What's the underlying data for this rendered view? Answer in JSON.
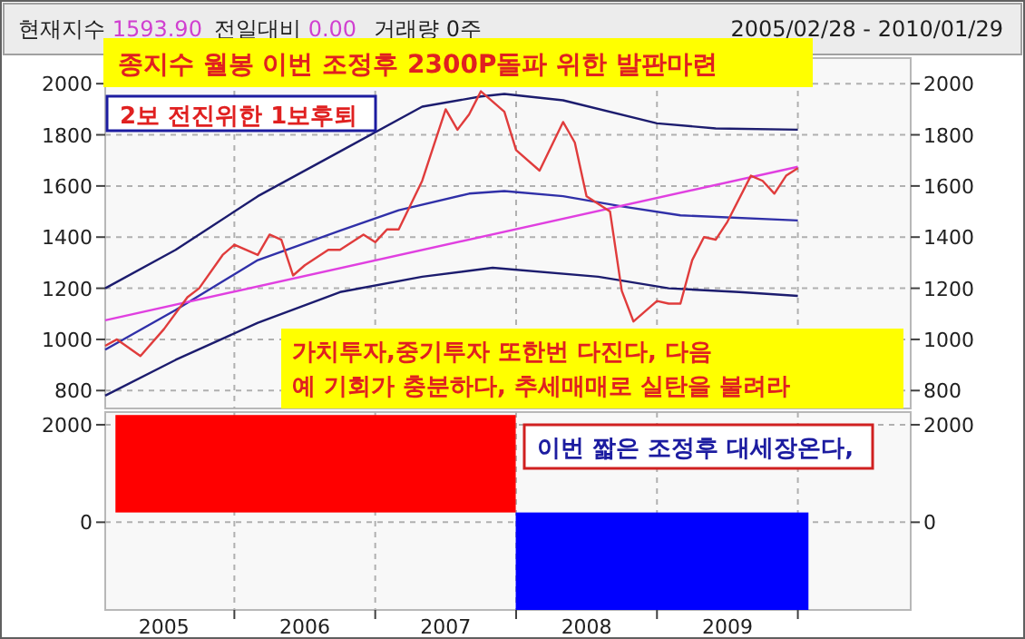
{
  "chart_data": [
    {
      "type": "line",
      "annotations": [
        "현재지수 1593.90",
        "전일대비 0.00",
        "거래량 0주",
        "2005/02/28 - 2010/01/29",
        "종지수 월봉 이번 조정후 2300P돌파 위한 발판마련",
        "2보 전진위한 1보후퇴",
        "가치투자,중기투자 또한번 다진다, 다음\n예 기회가 충분하다,  추세매매로 실탄을 불려라"
      ],
      "xlim": [
        "2005-02-01",
        "2010-10-20"
      ],
      "xticks": [
        {
          "value": "2006-01-01",
          "label": null
        },
        {
          "value": "2007-01-01",
          "label": null
        },
        {
          "value": "2008-01-01",
          "label": null
        },
        {
          "value": "2009-01-01",
          "label": null
        },
        {
          "value": "2010-01-01",
          "label": null
        }
      ],
      "ylim": [
        730,
        2100
      ],
      "yticks": [
        800,
        1000,
        1200,
        1400,
        1600,
        1800,
        2000
      ],
      "y2lim": [
        730,
        2100
      ],
      "y2ticks": [
        800,
        1000,
        1200,
        1400,
        1600,
        1800,
        2000
      ],
      "tick_labels": "y",
      "grid": true,
      "series": [
        {
          "color": "#1c1c6e",
          "x": [
            "2005-02",
            "2005-08",
            "2006-03",
            "2006-10",
            "2007-05",
            "2007-10",
            "2007-12",
            "2008-05",
            "2009-01",
            "2009-06",
            "2010-01"
          ],
          "values": [
            1200,
            1350,
            1560,
            1735,
            1910,
            1950,
            1960,
            1935,
            1845,
            1825,
            1820
          ]
        },
        {
          "color": "#3030a8",
          "x": [
            "2005-02",
            "2005-08",
            "2006-03",
            "2006-10",
            "2007-03",
            "2007-09",
            "2007-12",
            "2008-05",
            "2008-10",
            "2009-03",
            "2010-01"
          ],
          "values": [
            960,
            1115,
            1310,
            1425,
            1505,
            1570,
            1580,
            1560,
            1520,
            1485,
            1465
          ]
        },
        {
          "color": "#1c1c6e",
          "x": [
            "2005-02",
            "2005-08",
            "2006-03",
            "2006-10",
            "2007-05",
            "2007-11",
            "2008-08",
            "2009-02",
            "2009-08",
            "2010-01"
          ],
          "values": [
            780,
            920,
            1065,
            1185,
            1245,
            1280,
            1245,
            1200,
            1185,
            1170
          ]
        },
        {
          "color": "#e040e0",
          "x": [
            "2005-02",
            "2010-01"
          ],
          "values": [
            1075,
            1675
          ]
        },
        {
          "color": "#e03c3c",
          "x": [
            "2005-02",
            "2005-03",
            "2005-05",
            "2005-07",
            "2005-09",
            "2005-10",
            "2005-12",
            "2006-01",
            "2006-03",
            "2006-04",
            "2006-05",
            "2006-06",
            "2006-07",
            "2006-09",
            "2006-10",
            "2006-12",
            "2007-01",
            "2007-02",
            "2007-03",
            "2007-05",
            "2007-07",
            "2007-08",
            "2007-09",
            "2007-10",
            "2007-11",
            "2007-12",
            "2008-01",
            "2008-03",
            "2008-05",
            "2008-06",
            "2008-07",
            "2008-09",
            "2008-10",
            "2008-11",
            "2009-01",
            "2009-02",
            "2009-03",
            "2009-04",
            "2009-05",
            "2009-06",
            "2009-07",
            "2009-09",
            "2009-10",
            "2009-11",
            "2009-12",
            "2010-01"
          ],
          "values": [
            975,
            1000,
            935,
            1040,
            1165,
            1200,
            1330,
            1370,
            1330,
            1410,
            1390,
            1250,
            1290,
            1350,
            1350,
            1410,
            1380,
            1430,
            1430,
            1620,
            1900,
            1820,
            1880,
            1970,
            1930,
            1890,
            1740,
            1660,
            1850,
            1770,
            1560,
            1500,
            1190,
            1070,
            1150,
            1140,
            1140,
            1310,
            1400,
            1390,
            1460,
            1640,
            1620,
            1570,
            1640,
            1670
          ]
        }
      ]
    },
    {
      "type": "histogram",
      "annotations": [
        "이번 짧은 조정후 대세장온다,"
      ],
      "bins": [
        "2005-02-28",
        "2007-12-31",
        "2010-01-29"
      ],
      "values": [
        2000,
        -2000
      ],
      "base": [
        200,
        200
      ],
      "colors": [
        "#ff0000",
        "#0000ff"
      ],
      "xlim": [
        "2005-02-01",
        "2010-10-20"
      ],
      "xticks": [
        {
          "value": "2005-07-01",
          "label": "2005"
        },
        {
          "value": "2006-07-01",
          "label": "2006"
        },
        {
          "value": "2007-07-01",
          "label": "2007"
        },
        {
          "value": "2008-07-01",
          "label": "2008"
        },
        {
          "value": "2009-07-01",
          "label": "2009"
        },
        {
          "value": "2006-01-01",
          "label": null
        },
        {
          "value": "2007-01-01",
          "label": null
        },
        {
          "value": "2008-01-01",
          "label": null
        },
        {
          "value": "2009-01-01",
          "label": null
        },
        {
          "value": "2010-01-01",
          "label": null
        }
      ],
      "ylim": [
        -1800,
        2260
      ],
      "yticks": [
        0,
        2000
      ],
      "y2lim": [
        -1800,
        2260
      ],
      "y2ticks": [
        0,
        2000
      ],
      "grid": true
    }
  ]
}
